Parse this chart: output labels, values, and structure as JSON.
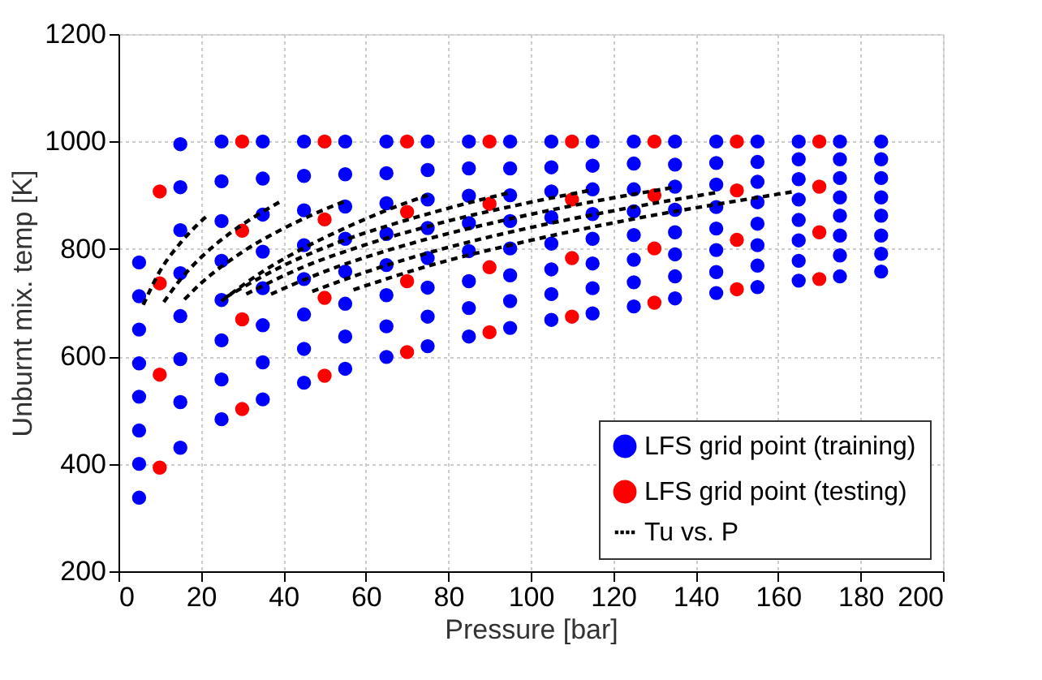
{
  "chart_data": {
    "type": "scatter",
    "xlabel": "Pressure [bar]",
    "ylabel": "Unburnt mix. temp [K]",
    "xlim": [
      0,
      200
    ],
    "xticks": [
      0,
      20,
      40,
      60,
      80,
      100,
      120,
      140,
      160,
      180,
      200
    ],
    "ylim": [
      200,
      1200
    ],
    "yticks": [
      200,
      400,
      600,
      800,
      1000,
      1200
    ],
    "grid": true,
    "legend": "bottom right",
    "series": [
      {
        "name": "LFS grid point (training)",
        "color": "#0000ff",
        "marker": "circle",
        "x": [
          5,
          5,
          5,
          5,
          5,
          5,
          5,
          5,
          15,
          15,
          15,
          15,
          15,
          15,
          15,
          15,
          25,
          25,
          25,
          25,
          25,
          25,
          25,
          25,
          35,
          35,
          35,
          35,
          35,
          35,
          35,
          35,
          45,
          45,
          45,
          45,
          45,
          45,
          45,
          45,
          55,
          55,
          55,
          55,
          55,
          55,
          55,
          55,
          65,
          65,
          65,
          65,
          65,
          65,
          65,
          65,
          75,
          75,
          75,
          75,
          75,
          75,
          75,
          75,
          85,
          85,
          85,
          85,
          85,
          85,
          85,
          85,
          95,
          95,
          95,
          95,
          95,
          95,
          95,
          95,
          105,
          105,
          105,
          105,
          105,
          105,
          105,
          105,
          115,
          115,
          115,
          115,
          115,
          115,
          115,
          115,
          125,
          125,
          125,
          125,
          125,
          125,
          125,
          125,
          135,
          135,
          135,
          135,
          135,
          135,
          135,
          135,
          145,
          145,
          145,
          145,
          145,
          145,
          145,
          145,
          155,
          155,
          155,
          155,
          155,
          155,
          155,
          155,
          165,
          165,
          165,
          165,
          165,
          165,
          165,
          165,
          175,
          175,
          175,
          175,
          175,
          175,
          175,
          175,
          185,
          185,
          185,
          185,
          185,
          185,
          185,
          185
        ],
        "values": [
          775,
          712,
          650,
          587,
          525,
          462,
          400,
          337,
          995,
          915,
          835,
          755,
          675,
          595,
          515,
          430,
          1000,
          926,
          852,
          778,
          705,
          630,
          557,
          483,
          1000,
          931,
          864,
          795,
          727,
          658,
          589,
          520,
          1000,
          936,
          872,
          807,
          744,
          678,
          614,
          551,
          1000,
          939,
          879,
          819,
          758,
          698,
          637,
          577,
          1000,
          941,
          885,
          828,
          770,
          714,
          656,
          599,
          1000,
          947,
          892,
          839,
          783,
          728,
          674,
          619,
          1000,
          950,
          899,
          848,
          796,
          740,
          690,
          637,
          1000,
          950,
          900,
          852,
          801,
          751,
          703,
          653,
          1000,
          952,
          907,
          859,
          810,
          762,
          716,
          668,
          1000,
          955,
          911,
          865,
          819,
          773,
          727,
          680,
          1000,
          959,
          911,
          870,
          826,
          780,
          738,
          693,
          1000,
          957,
          916,
          873,
          831,
          790,
          749,
          708,
          1000,
          960,
          920,
          878,
          838,
          798,
          757,
          718,
          1000,
          962,
          925,
          887,
          847,
          807,
          769,
          729,
          1000,
          967,
          930,
          892,
          854,
          816,
          778,
          741,
          1000,
          967,
          932,
          896,
          862,
          825,
          788,
          749,
          1000,
          967,
          932,
          896,
          862,
          825,
          791,
          758
        ]
      },
      {
        "name": "LFS grid point (testing)",
        "color": "#ff0000",
        "marker": "circle",
        "x": [
          10,
          10,
          10,
          10,
          30,
          30,
          30,
          30,
          50,
          50,
          50,
          50,
          70,
          70,
          70,
          70,
          90,
          90,
          90,
          90,
          110,
          110,
          110,
          110,
          130,
          130,
          130,
          130,
          150,
          150,
          150,
          150,
          170,
          170,
          170,
          170
        ],
        "values": [
          907,
          736,
          566,
          393,
          1000,
          834,
          669,
          502,
          1000,
          855,
          709,
          564,
          1000,
          869,
          740,
          608,
          1000,
          884,
          766,
          645,
          1000,
          892,
          783,
          674,
          1000,
          900,
          801,
          700,
          1000,
          909,
          817,
          725,
          1000,
          916,
          831,
          744
        ]
      },
      {
        "name": "Tu vs. P",
        "color": "#000000",
        "type": "line",
        "line_style": "dashed",
        "x": [
          6,
          10,
          15,
          19,
          22
        ],
        "values": [
          696,
          758,
          811,
          844,
          865
        ]
      },
      {
        "color": "#000000",
        "type": "line",
        "line_style": "dashed",
        "x": [
          11,
          15,
          20,
          27,
          33,
          39
        ],
        "values": [
          701,
          743,
          784,
          829,
          860,
          887
        ]
      },
      {
        "color": "#000000",
        "type": "line",
        "line_style": "dashed",
        "x": [
          16,
          20,
          30,
          40,
          48,
          55
        ],
        "values": [
          706,
          736,
          794,
          838,
          867,
          889
        ]
      },
      {
        "color": "#000000",
        "type": "line",
        "line_style": "dashed",
        "x": [
          25,
          35,
          45,
          55,
          65,
          75
        ],
        "values": [
          703,
          758,
          802,
          839,
          872,
          900
        ]
      },
      {
        "color": "#000000",
        "type": "line",
        "line_style": "dashed",
        "x": [
          26,
          40,
          55,
          70,
          85,
          95
        ],
        "values": [
          710,
          769,
          817,
          854,
          886,
          905
        ]
      },
      {
        "color": "#000000",
        "type": "line",
        "line_style": "dashed",
        "x": [
          31,
          45,
          60,
          80,
          100,
          115
        ],
        "values": [
          716,
          767,
          808,
          852,
          887,
          910
        ]
      },
      {
        "color": "#000000",
        "type": "line",
        "line_style": "dashed",
        "x": [
          37,
          50,
          70,
          95,
          115,
          135
        ],
        "values": [
          716,
          758,
          808,
          856,
          888,
          915
        ]
      },
      {
        "color": "#000000",
        "type": "line",
        "line_style": "dashed",
        "x": [
          47,
          60,
          80,
          100,
          120,
          145
        ],
        "values": [
          721,
          757,
          803,
          840,
          871,
          905
        ]
      },
      {
        "color": "#000000",
        "type": "line",
        "line_style": "dashed",
        "x": [
          57,
          75,
          100,
          125,
          145,
          164
        ],
        "values": [
          724,
          768,
          816,
          856,
          883,
          907
        ]
      }
    ]
  }
}
